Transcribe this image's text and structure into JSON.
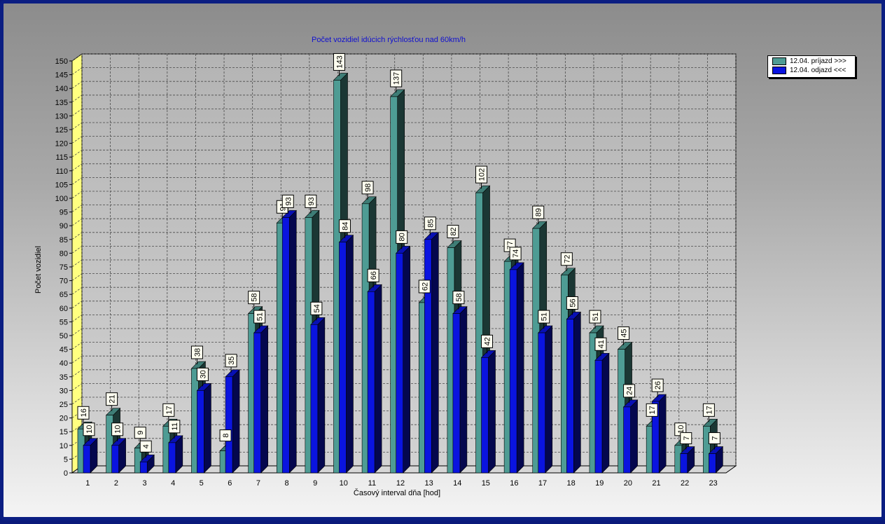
{
  "chart_data": {
    "type": "bar",
    "title": "Počet vozidiel idúcich rýchlosťou nad 60km/h",
    "xlabel": "Časový interval dňa [hod]",
    "ylabel": "Počet vozidiel",
    "ylim": [
      0,
      150
    ],
    "ytick_step": 5,
    "grid": true,
    "legend_position": "top-right",
    "categories": [
      "1",
      "2",
      "3",
      "4",
      "5",
      "6",
      "7",
      "8",
      "9",
      "10",
      "11",
      "12",
      "13",
      "14",
      "15",
      "16",
      "17",
      "18",
      "19",
      "20",
      "21",
      "22",
      "23"
    ],
    "series": [
      {
        "name": "12.04. príjazd >>>",
        "color": "#4e9c94",
        "values": [
          16,
          21,
          9,
          17,
          38,
          8,
          58,
          91,
          93,
          143,
          98,
          137,
          62,
          82,
          102,
          77,
          89,
          72,
          51,
          45,
          17,
          10,
          17
        ]
      },
      {
        "name": "12.04. odjazd <<<",
        "color": "#0a14e0",
        "values": [
          10,
          10,
          4,
          11,
          30,
          35,
          51,
          93,
          54,
          84,
          66,
          80,
          85,
          58,
          42,
          74,
          51,
          56,
          41,
          24,
          26,
          7,
          7
        ]
      }
    ]
  }
}
